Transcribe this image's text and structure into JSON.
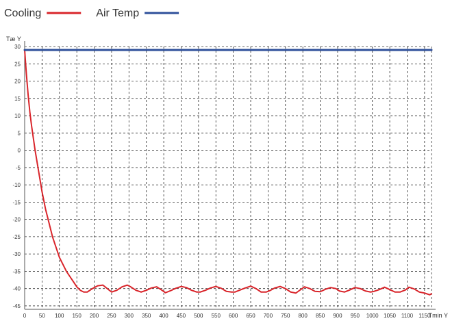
{
  "chart_data": {
    "type": "line",
    "title": "",
    "xlabel": "Tmin Y",
    "ylabel": "Tæ Y",
    "xlim": [
      0,
      1170
    ],
    "ylim": [
      -46,
      30
    ],
    "grid": true,
    "legend_position": "top-left",
    "x_ticks": [
      0,
      50,
      100,
      150,
      200,
      250,
      300,
      350,
      400,
      450,
      500,
      550,
      600,
      650,
      700,
      750,
      800,
      850,
      900,
      950,
      1000,
      1050,
      1100,
      1150
    ],
    "y_ticks": [
      30,
      25,
      20,
      15,
      10,
      5,
      0,
      -5,
      -10,
      -15,
      -20,
      -25,
      -30,
      -35,
      -40,
      -45
    ],
    "series": [
      {
        "name": "Cooling",
        "color": "#d9252b",
        "x": [
          0,
          5,
          10,
          15,
          20,
          30,
          40,
          50,
          60,
          70,
          80,
          90,
          100,
          110,
          120,
          130,
          140,
          150,
          160,
          170,
          180,
          195,
          210,
          225,
          235,
          250,
          265,
          280,
          295,
          305,
          320,
          335,
          350,
          365,
          380,
          395,
          405,
          420,
          435,
          450,
          465,
          480,
          495,
          505,
          520,
          535,
          550,
          565,
          580,
          595,
          605,
          620,
          635,
          650,
          665,
          680,
          695,
          705,
          720,
          735,
          750,
          765,
          780,
          795,
          805,
          820,
          835,
          850,
          865,
          880,
          895,
          905,
          920,
          935,
          950,
          965,
          980,
          995,
          1005,
          1020,
          1035,
          1050,
          1065,
          1080,
          1095,
          1105,
          1120,
          1135,
          1150,
          1165,
          1170
        ],
        "y": [
          29,
          22,
          16,
          11,
          7,
          0,
          -6,
          -12,
          -17,
          -21,
          -25,
          -28,
          -31,
          -33,
          -35,
          -36.5,
          -38,
          -39.5,
          -40.5,
          -41,
          -41,
          -40,
          -39.2,
          -39,
          -39.8,
          -41,
          -40.5,
          -39.5,
          -39,
          -39.5,
          -40.5,
          -41,
          -40.5,
          -39.8,
          -39.5,
          -40.5,
          -41.2,
          -40.6,
          -39.9,
          -39.4,
          -39.7,
          -40.5,
          -41,
          -41,
          -40.5,
          -39.8,
          -39.4,
          -39.9,
          -40.8,
          -41,
          -41,
          -40.4,
          -39.8,
          -39.3,
          -40,
          -41,
          -41,
          -40.6,
          -39.8,
          -39.4,
          -40,
          -41,
          -41.3,
          -40.2,
          -39.5,
          -40,
          -40.8,
          -40.9,
          -40.2,
          -39.7,
          -40,
          -40.7,
          -41,
          -40.4,
          -39.7,
          -40,
          -40.7,
          -41,
          -40.8,
          -40.3,
          -39.6,
          -40.3,
          -41,
          -41,
          -40.4,
          -39.6,
          -40.1,
          -41,
          -41.3,
          -41.8,
          -41.5
        ]
      },
      {
        "name": "Air Temp",
        "color": "#2e4f9a",
        "x": [
          0,
          1170
        ],
        "y": [
          29,
          29
        ]
      }
    ]
  }
}
